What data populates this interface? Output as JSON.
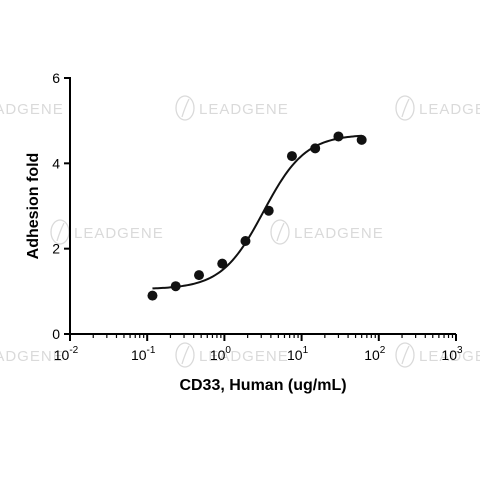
{
  "watermark": {
    "brand": "LEADGENE"
  },
  "chart_data": {
    "type": "scatter",
    "xlabel": "CD33, Human (ug/mL)",
    "ylabel": "Adhesion fold",
    "x_scale": "log",
    "xlim": [
      0.01,
      1000
    ],
    "ylim": [
      0,
      6
    ],
    "x_ticks": [
      {
        "value": 0.01,
        "base": "10",
        "exp": "-2"
      },
      {
        "value": 0.1,
        "base": "10",
        "exp": "-1"
      },
      {
        "value": 1,
        "base": "10",
        "exp": "0"
      },
      {
        "value": 10,
        "base": "10",
        "exp": "1"
      },
      {
        "value": 100,
        "base": "10",
        "exp": "2"
      },
      {
        "value": 1000,
        "base": "10",
        "exp": "3"
      }
    ],
    "y_ticks": [
      0,
      2,
      4,
      6
    ],
    "grid": false,
    "points": [
      {
        "x": 0.117,
        "y": 0.9
      },
      {
        "x": 0.234,
        "y": 1.12
      },
      {
        "x": 0.469,
        "y": 1.38
      },
      {
        "x": 0.938,
        "y": 1.65
      },
      {
        "x": 1.875,
        "y": 2.18
      },
      {
        "x": 3.75,
        "y": 2.89
      },
      {
        "x": 7.5,
        "y": 4.17
      },
      {
        "x": 15,
        "y": 4.35
      },
      {
        "x": 30,
        "y": 4.63
      },
      {
        "x": 60,
        "y": 4.55
      }
    ],
    "fit_curve": {
      "model": "4PL",
      "bottom": 1.05,
      "top": 4.68,
      "ec50": 3.2,
      "hill": 1.6,
      "x_range": [
        0.117,
        60
      ]
    },
    "colors": {
      "marker": "#111111",
      "line": "#111111",
      "axis": "#000000",
      "watermark": "#d6d6d6"
    }
  }
}
